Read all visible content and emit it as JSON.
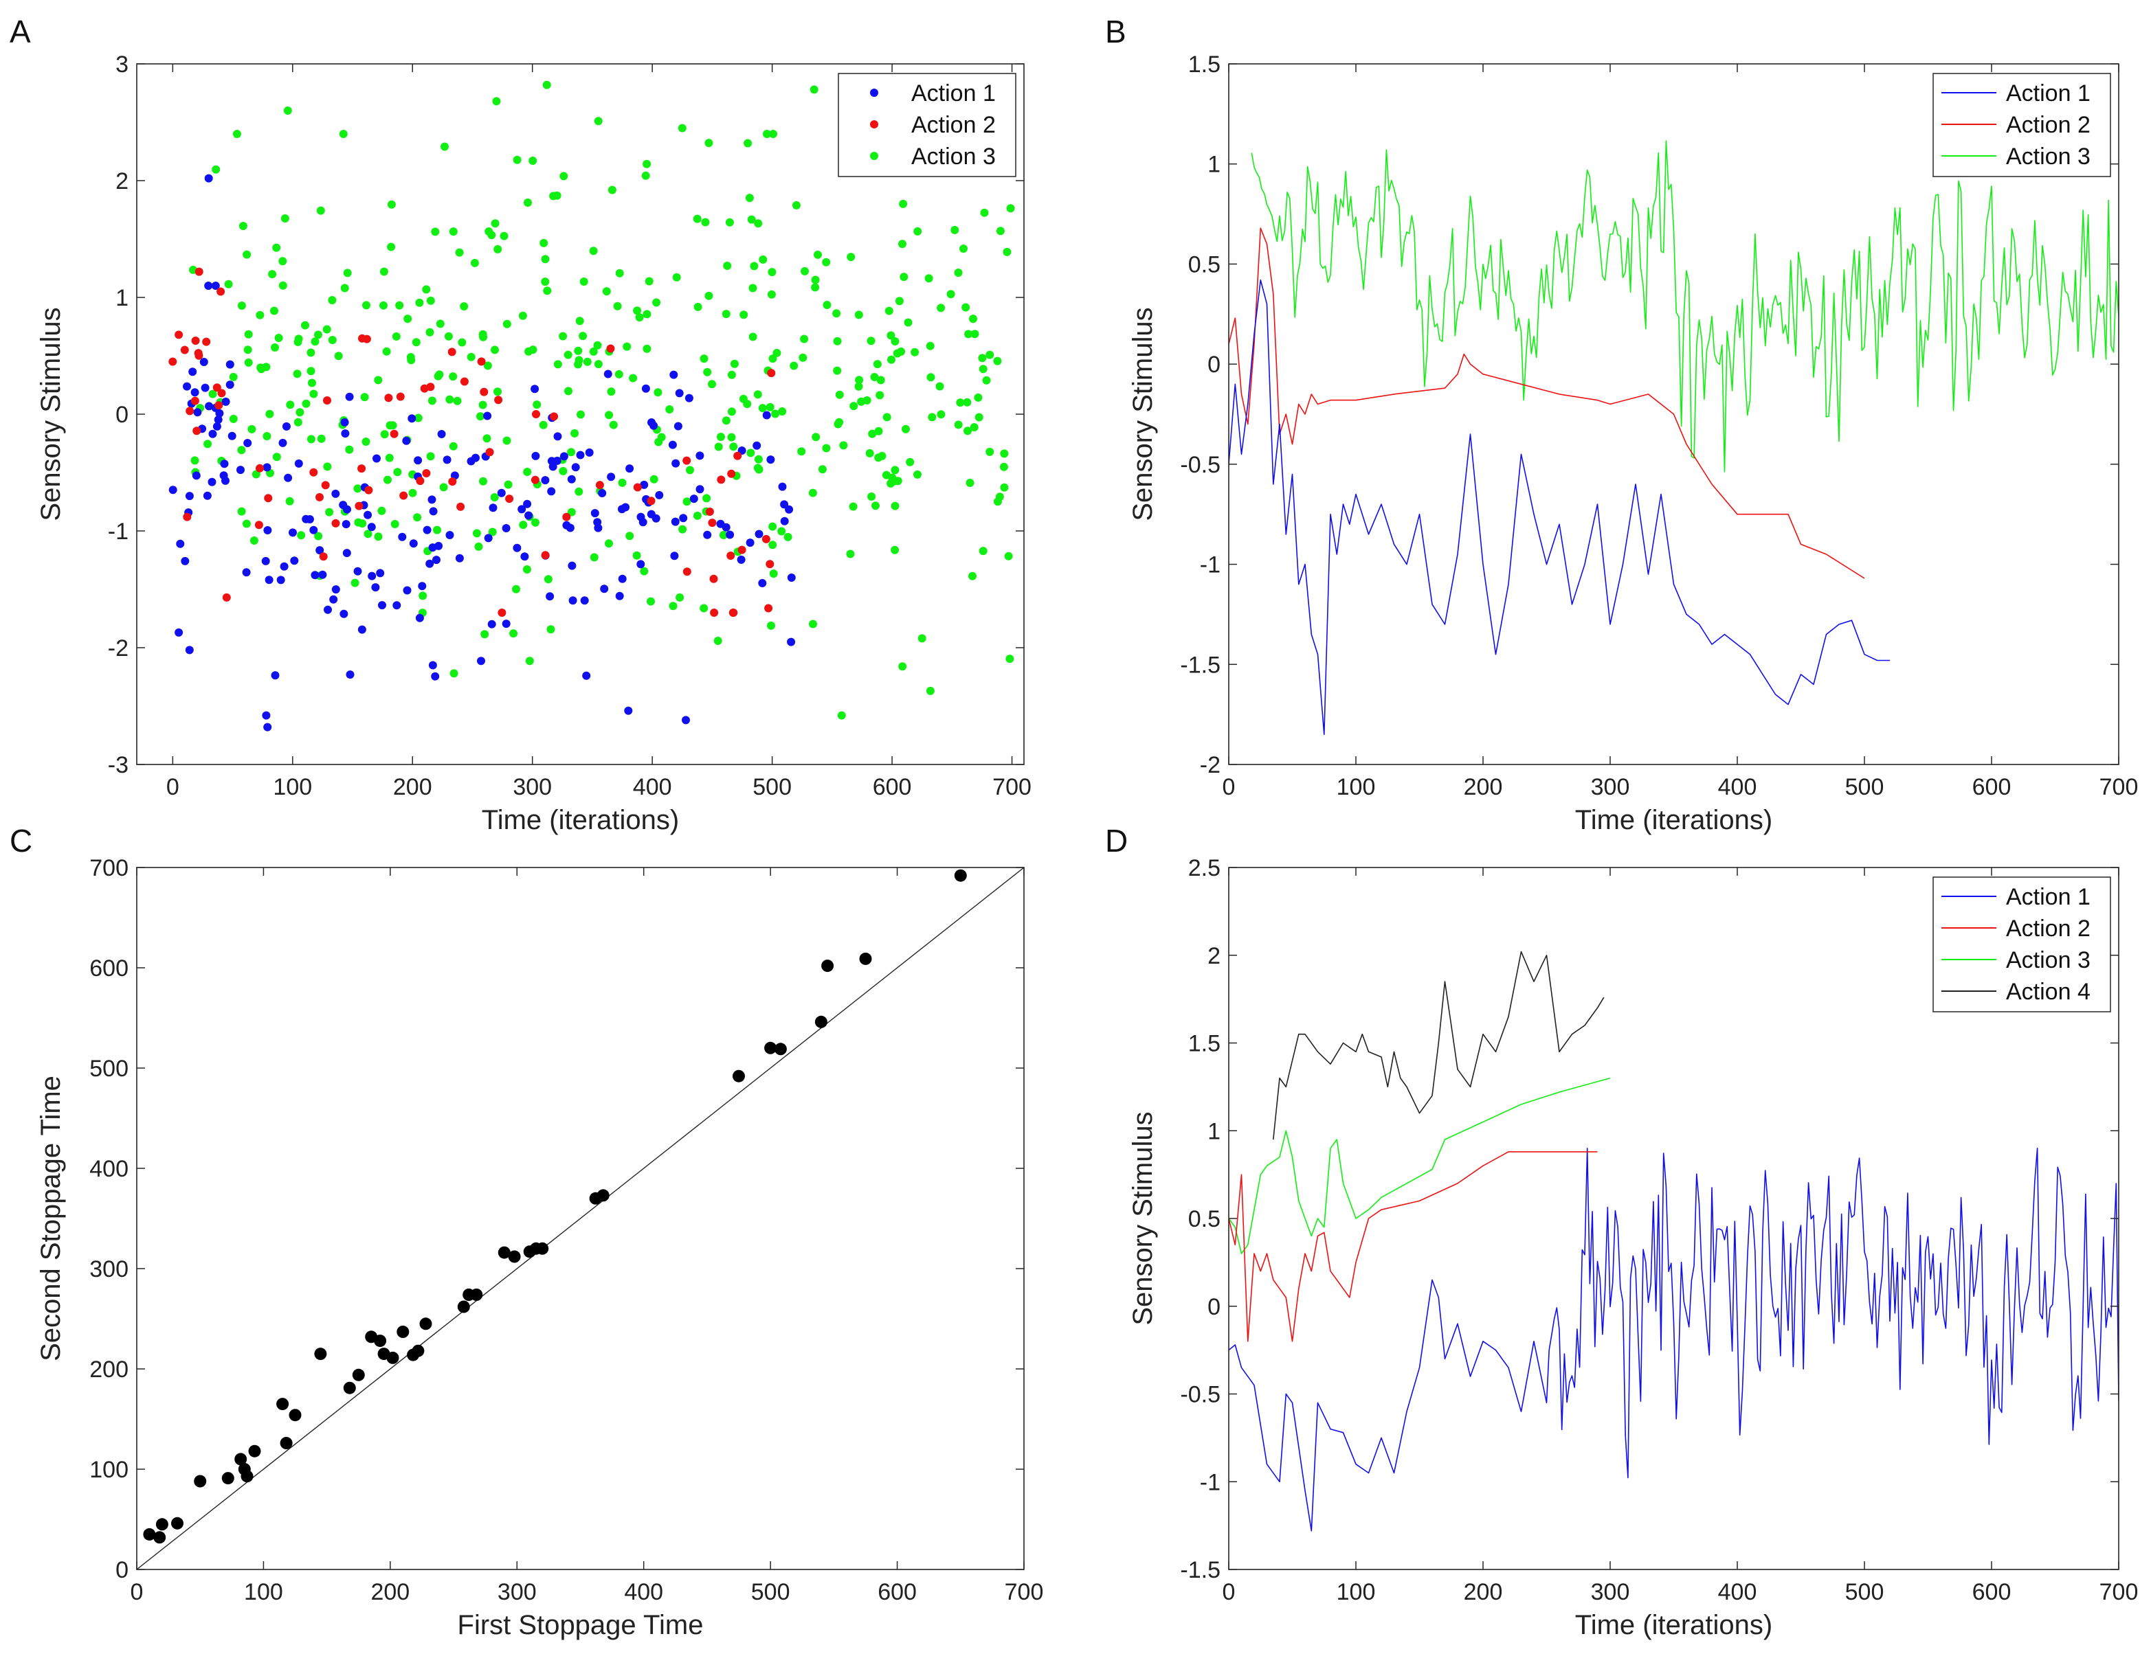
{
  "figure": {
    "colors": {
      "Action 1": "#1010ee",
      "Action 2": "#ee1111",
      "Action 3": "#11ee11",
      "Action 4": "#222222",
      "stoppage": "#000000"
    }
  },
  "chart_data": [
    {
      "panel": "A",
      "type": "scatter",
      "title": "",
      "xlabel": "Time (iterations)",
      "ylabel": "Sensory Stimulus",
      "xlim": [
        -30,
        710
      ],
      "ylim": [
        -3,
        3
      ],
      "xticks": [
        0,
        100,
        200,
        300,
        400,
        500,
        600,
        700
      ],
      "yticks": [
        -3,
        -2,
        -1,
        0,
        1,
        2,
        3
      ],
      "legend": {
        "position": "top-right",
        "entries": [
          "Action 1",
          "Action 2",
          "Action 3"
        ]
      },
      "series": [
        {
          "name": "Action 1",
          "color": "#1010ee",
          "x_range": [
            0,
            520
          ],
          "n": 190,
          "seed": 11,
          "points": [
            [
              30,
              2.02
            ],
            [
              78,
              -2.58
            ],
            [
              79,
              -2.68
            ],
            [
              148,
              -2.23
            ],
            [
              217,
              -2.15
            ],
            [
              345,
              -2.24
            ],
            [
              428,
              -2.62
            ],
            [
              380,
              -2.54
            ],
            [
              14,
              -2.02
            ],
            [
              5,
              -1.87
            ]
          ]
        },
        {
          "name": "Action 2",
          "color": "#ee1111",
          "x_range": [
            0,
            500
          ],
          "n": 60,
          "seed": 23,
          "points": [
            [
              0,
              0.45
            ],
            [
              5,
              0.68
            ],
            [
              10,
              0.55
            ],
            [
              12,
              -0.88
            ],
            [
              22,
              1.22
            ],
            [
              28,
              0.62
            ],
            [
              40,
              1.05
            ],
            [
              45,
              -1.57
            ],
            [
              180,
              0.14
            ],
            [
              190,
              0.15
            ],
            [
              210,
              0.22
            ],
            [
              303,
              0.0
            ],
            [
              318,
              -0.02
            ],
            [
              450,
              -0.93
            ],
            [
              495,
              -1.07
            ]
          ]
        },
        {
          "name": "Action 3",
          "color": "#11ee11",
          "x_range": [
            15,
            700
          ],
          "n": 420,
          "seed": 37,
          "points": [
            [
              96,
              2.6
            ],
            [
              270,
              2.68
            ],
            [
              312,
              2.82
            ],
            [
              355,
              2.51
            ],
            [
              425,
              2.45
            ],
            [
              535,
              2.78
            ],
            [
              558,
              -2.58
            ],
            [
              632,
              -2.37
            ],
            [
              625,
              -1.92
            ]
          ]
        }
      ]
    },
    {
      "panel": "B",
      "type": "line",
      "title": "",
      "xlabel": "Time (iterations)",
      "ylabel": "Sensory Stimulus",
      "xlim": [
        0,
        700
      ],
      "ylim": [
        -2,
        1.5
      ],
      "xticks": [
        0,
        100,
        200,
        300,
        400,
        500,
        600,
        700
      ],
      "yticks": [
        -2,
        -1.5,
        -1,
        -0.5,
        0,
        0.5,
        1,
        1.5
      ],
      "legend": {
        "position": "top-right",
        "entries": [
          "Action 1",
          "Action 2",
          "Action 3"
        ]
      },
      "series": [
        {
          "name": "Action 1",
          "color": "#1010ee",
          "x": [
            0,
            5,
            10,
            15,
            20,
            25,
            30,
            35,
            40,
            45,
            50,
            55,
            60,
            65,
            70,
            75,
            80,
            85,
            90,
            95,
            100,
            110,
            120,
            130,
            140,
            150,
            160,
            170,
            180,
            190,
            200,
            210,
            220,
            230,
            240,
            250,
            260,
            270,
            280,
            290,
            300,
            310,
            320,
            330,
            340,
            350,
            360,
            370,
            380,
            390,
            400,
            410,
            420,
            430,
            440,
            450,
            460,
            470,
            480,
            490,
            500,
            510,
            520
          ],
          "y": [
            -0.5,
            -0.1,
            -0.45,
            -0.2,
            0.15,
            0.42,
            0.3,
            -0.6,
            -0.3,
            -0.85,
            -0.55,
            -1.1,
            -1.0,
            -1.35,
            -1.45,
            -1.85,
            -0.75,
            -0.95,
            -0.7,
            -0.8,
            -0.65,
            -0.85,
            -0.7,
            -0.9,
            -1.0,
            -0.75,
            -1.2,
            -1.3,
            -0.95,
            -0.35,
            -1.0,
            -1.45,
            -1.1,
            -0.45,
            -0.75,
            -1.0,
            -0.8,
            -1.2,
            -1.0,
            -0.7,
            -1.3,
            -1.0,
            -0.6,
            -1.05,
            -0.65,
            -1.1,
            -1.25,
            -1.3,
            -1.4,
            -1.35,
            -1.4,
            -1.45,
            -1.55,
            -1.65,
            -1.7,
            -1.55,
            -1.6,
            -1.35,
            -1.3,
            -1.28,
            -1.45,
            -1.48,
            -1.48
          ]
        },
        {
          "name": "Action 2",
          "color": "#ee1111",
          "x": [
            0,
            5,
            10,
            15,
            20,
            25,
            30,
            35,
            40,
            45,
            50,
            55,
            60,
            65,
            70,
            80,
            100,
            130,
            170,
            180,
            185,
            190,
            200,
            230,
            260,
            290,
            300,
            330,
            340,
            350,
            360,
            380,
            400,
            440,
            450,
            470,
            500
          ],
          "y": [
            0.1,
            0.23,
            -0.15,
            -0.3,
            0.1,
            0.68,
            0.6,
            0.35,
            -0.35,
            -0.25,
            -0.4,
            -0.2,
            -0.25,
            -0.15,
            -0.2,
            -0.18,
            -0.18,
            -0.15,
            -0.12,
            -0.05,
            0.05,
            0.0,
            -0.05,
            -0.1,
            -0.15,
            -0.18,
            -0.2,
            -0.15,
            -0.2,
            -0.25,
            -0.4,
            -0.6,
            -0.75,
            -0.75,
            -0.9,
            -0.95,
            -1.07
          ]
        },
        {
          "name": "Action 3",
          "color": "#11ee11",
          "x_range": [
            18,
            700
          ],
          "seed": 53
        }
      ]
    },
    {
      "panel": "C",
      "type": "scatter",
      "title": "",
      "xlabel": "First Stoppage Time",
      "ylabel": "Second Stoppage Time",
      "xlim": [
        0,
        700
      ],
      "ylim": [
        0,
        700
      ],
      "xticks": [
        0,
        100,
        200,
        300,
        400,
        500,
        600,
        700
      ],
      "yticks": [
        0,
        100,
        200,
        300,
        400,
        500,
        600,
        700
      ],
      "reference_line": "y = x",
      "series": [
        {
          "name": "stoppage",
          "color": "#000000",
          "x": [
            10,
            18,
            20,
            32,
            50,
            72,
            82,
            85,
            87,
            93,
            115,
            118,
            125,
            145,
            168,
            175,
            185,
            192,
            195,
            202,
            210,
            218,
            222,
            228,
            258,
            262,
            268,
            290,
            298,
            310,
            315,
            320,
            362,
            368,
            475,
            500,
            508,
            540,
            545,
            575,
            650
          ],
          "y": [
            35,
            32,
            45,
            46,
            88,
            91,
            110,
            100,
            93,
            118,
            165,
            126,
            154,
            215,
            181,
            194,
            232,
            228,
            215,
            211,
            237,
            214,
            218,
            245,
            262,
            274,
            274,
            316,
            312,
            317,
            320,
            320,
            370,
            373,
            492,
            520,
            519,
            546,
            602,
            609,
            692
          ]
        }
      ]
    },
    {
      "panel": "D",
      "type": "line",
      "title": "",
      "xlabel": "Time (iterations)",
      "ylabel": "Sensory Stimulus",
      "xlim": [
        0,
        700
      ],
      "ylim": [
        -1.5,
        2.5
      ],
      "xticks": [
        0,
        100,
        200,
        300,
        400,
        500,
        600,
        700
      ],
      "yticks": [
        -1.5,
        -1,
        -0.5,
        0,
        0.5,
        1,
        1.5,
        2,
        2.5
      ],
      "legend": {
        "position": "top-right",
        "entries": [
          "Action 1",
          "Action 2",
          "Action 3",
          "Action 4"
        ]
      },
      "series": [
        {
          "name": "Action 1",
          "color": "#1010ee",
          "x_range": [
            0,
            700
          ],
          "seed": 71,
          "x": [
            0,
            5,
            10,
            20,
            30,
            40,
            45,
            50,
            60,
            65,
            70,
            80,
            90,
            100,
            110,
            120,
            130,
            140,
            150,
            160,
            165,
            170,
            180,
            190,
            200,
            210,
            220,
            230,
            240,
            250
          ],
          "y": [
            -0.25,
            -0.22,
            -0.35,
            -0.45,
            -0.9,
            -1.0,
            -0.5,
            -0.55,
            -1.05,
            -1.28,
            -0.55,
            -0.7,
            -0.72,
            -0.9,
            -0.95,
            -0.75,
            -0.95,
            -0.6,
            -0.35,
            0.15,
            0.05,
            -0.3,
            -0.1,
            -0.4,
            -0.2,
            -0.25,
            -0.35,
            -0.6,
            -0.2,
            -0.55
          ]
        },
        {
          "name": "Action 2",
          "color": "#ee1111",
          "x": [
            0,
            5,
            10,
            15,
            20,
            25,
            30,
            35,
            40,
            45,
            50,
            55,
            60,
            65,
            70,
            75,
            80,
            85,
            90,
            95,
            100,
            110,
            120,
            150,
            180,
            200,
            220,
            250,
            290
          ],
          "y": [
            0.5,
            0.35,
            0.75,
            -0.2,
            0.3,
            0.2,
            0.3,
            0.15,
            0.1,
            0.05,
            -0.2,
            0.1,
            0.3,
            0.2,
            0.4,
            0.42,
            0.2,
            0.15,
            0.1,
            0.05,
            0.25,
            0.5,
            0.55,
            0.6,
            0.7,
            0.8,
            0.88,
            0.88,
            0.88
          ]
        },
        {
          "name": "Action 3",
          "color": "#11ee11",
          "x": [
            0,
            5,
            10,
            15,
            20,
            25,
            30,
            40,
            45,
            50,
            55,
            60,
            65,
            70,
            75,
            80,
            85,
            90,
            95,
            100,
            110,
            120,
            140,
            160,
            170,
            200,
            230,
            260,
            300
          ],
          "y": [
            0.5,
            0.45,
            0.3,
            0.35,
            0.55,
            0.75,
            0.8,
            0.85,
            1.0,
            0.85,
            0.6,
            0.5,
            0.4,
            0.5,
            0.45,
            0.9,
            0.95,
            0.7,
            0.6,
            0.5,
            0.55,
            0.62,
            0.7,
            0.78,
            0.95,
            1.05,
            1.15,
            1.22,
            1.3
          ]
        },
        {
          "name": "Action 4",
          "color": "#222222",
          "x": [
            35,
            40,
            45,
            50,
            55,
            60,
            70,
            80,
            90,
            100,
            105,
            110,
            120,
            125,
            130,
            135,
            140,
            150,
            160,
            165,
            170,
            175,
            180,
            190,
            200,
            210,
            220,
            230,
            240,
            250,
            260,
            270,
            280,
            290,
            295
          ],
          "y": [
            0.95,
            1.3,
            1.25,
            1.4,
            1.55,
            1.55,
            1.45,
            1.38,
            1.5,
            1.45,
            1.55,
            1.45,
            1.42,
            1.25,
            1.45,
            1.3,
            1.25,
            1.1,
            1.2,
            1.5,
            1.85,
            1.6,
            1.35,
            1.25,
            1.55,
            1.45,
            1.65,
            2.02,
            1.85,
            2.0,
            1.45,
            1.55,
            1.6,
            1.7,
            1.76
          ]
        }
      ]
    }
  ],
  "panel_labels": [
    "A",
    "B",
    "C",
    "D"
  ]
}
